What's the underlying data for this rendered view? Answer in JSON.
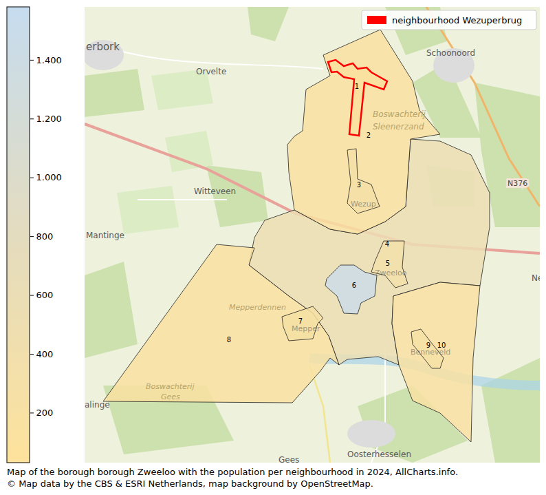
{
  "chart_data": {
    "type": "choropleth",
    "caption": [
      "Map of the borough borough Zweeloo with the population per neighbourhood in 2024, AllCharts.info.",
      "© Map data by the CBS & ESRI Netherlands, map background by OpenStreetMap."
    ],
    "legend": "upper right",
    "highlight": {
      "name": "neighbourhood Wezuperbrug",
      "color": "#ff0000",
      "region": "1"
    },
    "regions": [
      {
        "label": "1",
        "value": 100
      },
      {
        "label": "2",
        "value": 150
      },
      {
        "label": "3",
        "value": 300
      },
      {
        "label": "4",
        "value": 550
      },
      {
        "label": "5",
        "value": 350
      },
      {
        "label": "6",
        "value": 1450
      },
      {
        "label": "7",
        "value": 250
      },
      {
        "label": "8",
        "value": 160
      },
      {
        "label": "9",
        "value": 250
      },
      {
        "label": "10",
        "value": 170
      }
    ],
    "colorbar": {
      "range": [
        30,
        1580
      ],
      "ticks": [
        200,
        400,
        600,
        800,
        {
          "value": 1000,
          "label": "1.000"
        },
        {
          "value": 1200,
          "label": "1.200"
        },
        {
          "value": 1400,
          "label": "1.400"
        }
      ],
      "colors": [
        "#fde29b",
        "#e4dcbf",
        "#c6dcef"
      ]
    },
    "place_names": [
      "erbork",
      "Orvelte",
      "Schoonoord",
      "Boswachterij",
      "Sleenerzand",
      "Witteveen",
      "N376",
      "Mantinge",
      "Ne",
      "Mepperdennen",
      "alinge",
      "Boswachterij",
      "Gees",
      "Oosterhesselen",
      "Gees",
      "Wezup",
      "Zweeloo",
      "Mepper",
      "Benneveld"
    ]
  }
}
